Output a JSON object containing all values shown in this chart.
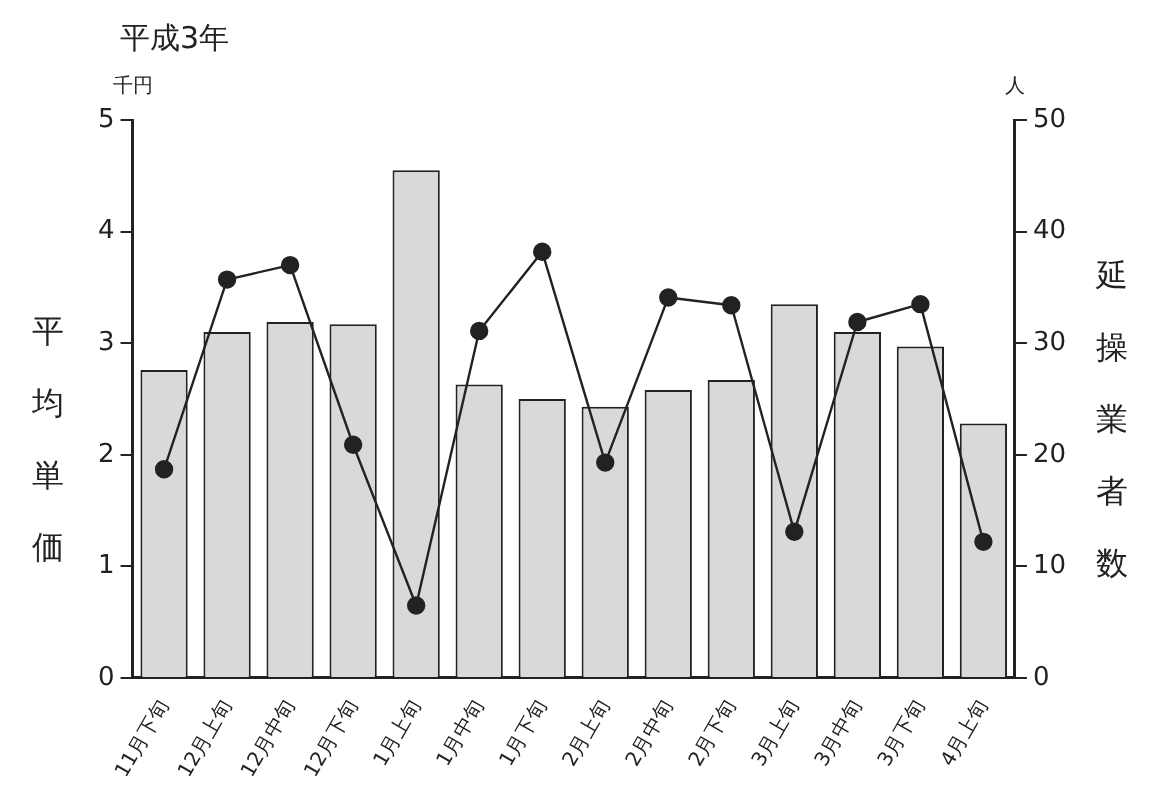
{
  "chart_data": {
    "type": "bar",
    "title": "平成3年",
    "ylabel": "平均単価",
    "y2label": "延操業者数",
    "annotations": [
      "千円",
      "人"
    ],
    "categories": [
      "11月下旬",
      "12月上旬",
      "12月中旬",
      "12月下旬",
      "1月上旬",
      "1月中旬",
      "1月下旬",
      "2月上旬",
      "2月中旬",
      "2月下旬",
      "3月上旬",
      "3月中旬",
      "3月下旬",
      "4月上旬"
    ],
    "series": [
      {
        "color": "#d9d9d9",
        "values": [
          2.76,
          3.1,
          3.19,
          3.17,
          4.55,
          2.63,
          2.5,
          2.43,
          2.58,
          2.67,
          3.35,
          3.1,
          2.97,
          2.28
        ]
      },
      {
        "type": "line",
        "axis": "y2",
        "color": "#222222",
        "marker": "circle",
        "values": [
          18.7,
          35.7,
          37.0,
          20.9,
          6.5,
          31.1,
          38.2,
          19.3,
          34.1,
          33.4,
          13.1,
          31.9,
          33.5,
          12.2
        ]
      }
    ],
    "ylim": [
      0,
      5
    ],
    "yticks": [
      0,
      1,
      2,
      3,
      4,
      5
    ],
    "y2lim": [
      0,
      50
    ],
    "y2ticks": [
      0,
      10,
      20,
      30,
      40,
      50
    ],
    "grid": false,
    "legend": false
  }
}
